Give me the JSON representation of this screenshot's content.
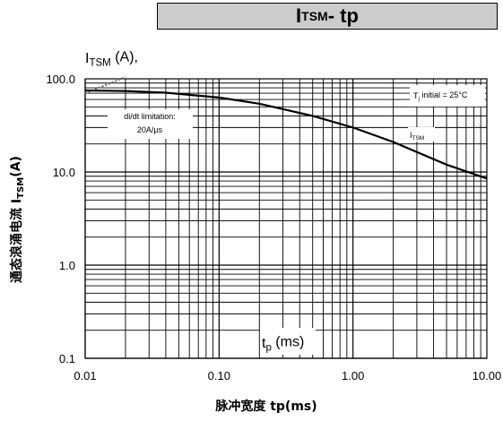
{
  "title": {
    "main": "I",
    "sub": "TSM",
    "rest": " - tp"
  },
  "y_unit": {
    "main": "I",
    "sub": "TSM",
    "rest": " (A),"
  },
  "y_axis_title": {
    "main": "通态浪涌电流 I",
    "sub": "TSM",
    "rest": "(A)"
  },
  "x_axis_title": "脉冲宽度 tp(ms)",
  "x_inner_label": {
    "main": "t",
    "sub": "p",
    "rest": " (ms)"
  },
  "annotations": {
    "didt_line1": "di/dt limitation:",
    "didt_line2": "20A/µs",
    "tj": {
      "main": "T",
      "sub": "j",
      "rest": " initial = 25°C"
    },
    "curve": {
      "main": "I",
      "sub": "TSM"
    }
  },
  "chart_data": {
    "type": "line",
    "x_scale": "log",
    "y_scale": "log",
    "xlim": [
      0.01,
      10
    ],
    "ylim": [
      0.1,
      100
    ],
    "x_ticks": [
      0.01,
      0.1,
      1,
      10
    ],
    "x_tick_labels": [
      "0.01",
      "0.10",
      "1.00",
      "10.00"
    ],
    "y_ticks": [
      0.1,
      1,
      10,
      100
    ],
    "y_tick_labels": [
      "0.1",
      "1.0",
      "10.0",
      "100.0"
    ],
    "grid": true,
    "series": [
      {
        "name": "ITSM",
        "x": [
          0.01,
          0.02,
          0.04,
          0.1,
          0.2,
          0.5,
          1,
          2,
          5,
          10
        ],
        "y": [
          75,
          74,
          71,
          63,
          54,
          40,
          30,
          21,
          12,
          8.5
        ]
      }
    ],
    "didt_limit_line": {
      "x": [
        0.01,
        0.02
      ],
      "y": [
        70,
        105
      ]
    }
  }
}
